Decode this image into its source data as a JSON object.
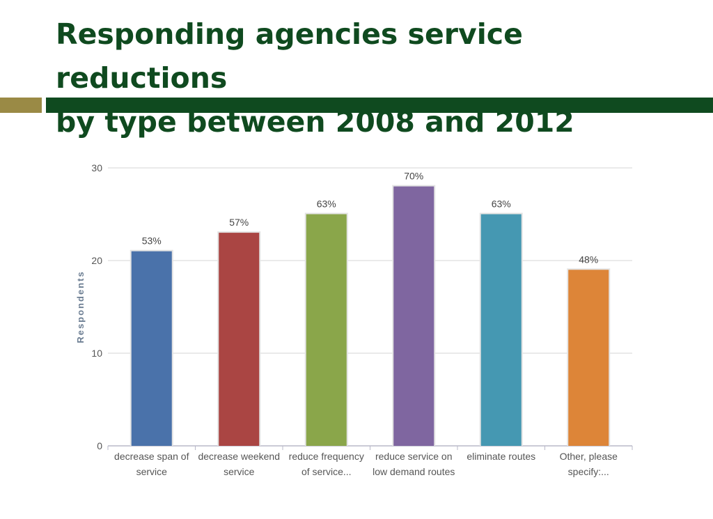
{
  "slide": {
    "title_line1": "Responding agencies service reductions",
    "title_line2": "by type between 2008 and 2012"
  },
  "chart_data": {
    "type": "bar",
    "title": "Responding agencies service reductions by type between 2008 and 2012",
    "xlabel": "",
    "ylabel": "Respondents",
    "ylim": [
      0,
      30
    ],
    "yticks": [
      0,
      10,
      20,
      30
    ],
    "grid": true,
    "categories": [
      [
        "decrease span of",
        "service"
      ],
      [
        "decrease weekend",
        "service"
      ],
      [
        "reduce frequency",
        "of service..."
      ],
      [
        "reduce service on",
        "low demand routes"
      ],
      [
        "eliminate routes"
      ],
      [
        "Other, please",
        "specify:..."
      ]
    ],
    "values": [
      21,
      23,
      25,
      28,
      25,
      19
    ],
    "data_labels": [
      "53%",
      "57%",
      "63%",
      "70%",
      "63%",
      "48%"
    ],
    "colors": [
      "#4a72aa",
      "#aa4543",
      "#8aa64a",
      "#7f66a0",
      "#4598b2",
      "#dd8538"
    ]
  }
}
